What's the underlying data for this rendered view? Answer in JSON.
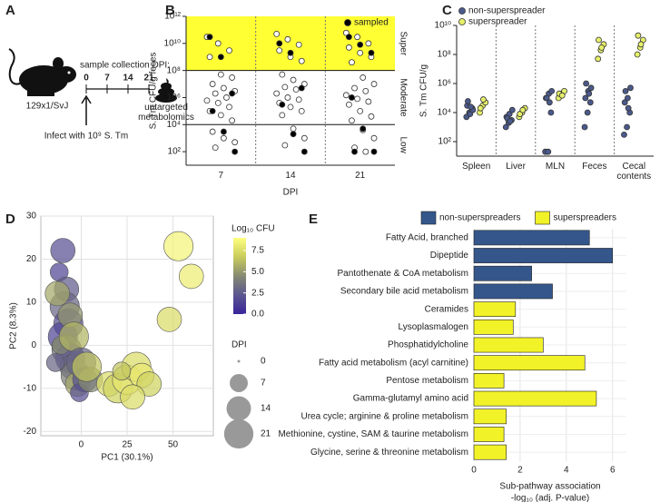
{
  "diagram": {
    "panel_label": "A",
    "strain": "129x1/SvJ",
    "timeline_title": "sample collection DPI:",
    "timepoints": [
      "0",
      "7",
      "14",
      "21"
    ],
    "infection": "Infect with 10⁹ S. Tm",
    "output": "untargeted metabolomics"
  },
  "chart_data": [
    {
      "panel_label": "B",
      "type": "strip",
      "ylabel": "S. Tm CFU/g feces",
      "xlabel": "DPI",
      "categories": [
        "7",
        "14",
        "21"
      ],
      "log_y": true,
      "dodge": false,
      "ylim": [
        10,
        1000000000000
      ],
      "yticks": [
        {
          "value": 100,
          "label": "10²"
        },
        {
          "value": 10000,
          "label": "10⁴"
        },
        {
          "value": 1000000,
          "label": "10⁶"
        },
        {
          "value": 100000000,
          "label": "10⁸"
        },
        {
          "value": 10000000000,
          "label": "10¹⁰"
        },
        {
          "value": 1000000000000,
          "label": "10¹²"
        }
      ],
      "regions": [
        {
          "label": "Super",
          "range": [
            100000000,
            1000000000000
          ],
          "color": "#ffff33"
        },
        {
          "label": "Moderate",
          "range": [
            10000,
            100000000
          ]
        },
        {
          "label": "Low",
          "range": [
            10,
            10000
          ]
        }
      ],
      "legend": "upper right",
      "series": [
        {
          "color": "#ffffff",
          "values": [
            [
              30000000000,
              10000000000,
              3000000000,
              1000000000,
              50000000,
              30000000,
              10000000,
              5000000,
              3000000,
              2000000,
              1000000,
              600000,
              400000,
              200000,
              100000,
              50000,
              20000,
              3000,
              1000,
              500,
              200
            ],
            [
              50000000000,
              20000000000,
              8000000000,
              3000000000,
              1000000000,
              500000000,
              50000000,
              20000000,
              10000000,
              6000000,
              4000000,
              2000000,
              1000000,
              700000,
              400000,
              200000,
              100000,
              50000,
              5000,
              1000,
              300
            ],
            [
              60000000000,
              30000000000,
              10000000000,
              5000000000,
              2000000000,
              1000000000,
              400000000,
              30000000,
              10000000,
              5000000,
              3000000,
              1500000,
              800000,
              500000,
              300000,
              100000,
              40000,
              20000,
              4000,
              1000,
              200,
              100
            ]
          ]
        },
        {
          "name": "sampled",
          "color": "#000000",
          "values": [
            [
              30000000000,
              1000000000,
              2000000,
              100000,
              3000,
              100
            ],
            [
              10000000000,
              2000000000,
              5000000,
              300000,
              2000,
              100
            ],
            [
              30000000000,
              8000000000,
              2000000000,
              1000000,
              5000,
              100,
              100
            ]
          ]
        }
      ]
    },
    {
      "panel_label": "C",
      "type": "strip",
      "ylabel": "S. Tm CFU/g",
      "categories": [
        "Spleen",
        "Liver",
        "MLN",
        "Feces",
        "Cecal contents"
      ],
      "log_y": true,
      "dodge": true,
      "ylim": [
        10,
        10000000000
      ],
      "yticks": [
        {
          "value": 100,
          "label": "10²"
        },
        {
          "value": 10000,
          "label": "10⁴"
        },
        {
          "value": 1000000,
          "label": "10⁶"
        },
        {
          "value": 100000000,
          "label": "10⁸"
        },
        {
          "value": 10000000000,
          "label": "10¹⁰"
        }
      ],
      "legend": "upper left",
      "series": [
        {
          "name": "non-superspreader",
          "color": "#4b5a8c",
          "values": [
            [
              5000,
              10000,
              20000,
              30000,
              8000,
              15000,
              60000,
              25000
            ],
            [
              1000,
              2000,
              3000,
              5000,
              8000,
              15000,
              4000,
              2500
            ],
            [
              20,
              20,
              10000,
              100000,
              200000,
              300000,
              100000,
              50000
            ],
            [
              1000,
              10000,
              50000,
              100000,
              300000,
              500000,
              1000000,
              200000
            ],
            [
              300,
              1000,
              10000,
              50000,
              100000,
              500000,
              300000,
              20000
            ]
          ]
        },
        {
          "name": "superspreader",
          "color": "#e6f06a",
          "values": [
            [
              10000,
              30000,
              50000,
              20000,
              80000
            ],
            [
              5000,
              10000,
              20000,
              8000,
              15000
            ],
            [
              100000,
              200000,
              300000,
              200000,
              150000
            ],
            [
              50000000,
              200000000,
              500000000,
              1000000000,
              300000000
            ],
            [
              100000000,
              300000000,
              1000000000,
              2000000000,
              500000000
            ]
          ]
        }
      ]
    },
    {
      "panel_label": "D",
      "type": "bubble",
      "xlabel": "PC1 (30.1%)",
      "ylabel": "PC2 (8.3%)",
      "grid": true,
      "xlim": [
        -22,
        72
      ],
      "ylim": [
        -21,
        30
      ],
      "xticks": [
        0,
        25,
        50
      ],
      "yticks": [
        -20,
        -10,
        0,
        10,
        20,
        30
      ],
      "x": [
        -10,
        -12,
        -8,
        -9,
        -7,
        -10,
        -8,
        -6,
        -5,
        -3,
        -2,
        -6,
        -11,
        -4,
        0,
        2,
        -13,
        -14,
        -1,
        5,
        3,
        15,
        20,
        25,
        30,
        33,
        37,
        28,
        48,
        53,
        60,
        22
      ],
      "y": [
        22,
        17,
        13,
        9,
        5,
        2,
        -1,
        -3,
        -5,
        -7,
        -9,
        7,
        0,
        2,
        -4,
        -8,
        12,
        -4,
        -11,
        -8,
        -5,
        -9,
        -10,
        -8,
        -5,
        -7,
        -9,
        -12,
        6,
        23,
        16,
        -6
      ],
      "sizes": [
        14,
        7,
        14,
        21,
        21,
        21,
        21,
        21,
        14,
        21,
        14,
        14,
        7,
        21,
        21,
        14,
        14,
        7,
        7,
        14,
        21,
        14,
        21,
        21,
        21,
        14,
        14,
        14,
        14,
        21,
        14,
        7
      ],
      "colors": [
        2,
        1.5,
        2.5,
        3,
        2,
        1.5,
        3.5,
        2,
        3,
        4,
        5.5,
        5,
        4.5,
        6,
        3,
        2,
        5.5,
        3,
        2,
        4.5,
        6.5,
        7.5,
        7,
        8,
        7.5,
        8,
        7,
        7.5,
        7.5,
        8.5,
        8.2,
        6.5
      ],
      "size_legend": {
        "title": "DPI",
        "values": [
          0,
          7,
          14,
          21
        ]
      },
      "colorbar": {
        "title": "Log₁₀ CFU",
        "lim": [
          0,
          9
        ],
        "colormap": [
          "#3a249a",
          "#5b5690",
          "#858a72",
          "#c9cc5c",
          "#ffff80"
        ],
        "ticks": [
          {
            "value": 0,
            "label": "0.0"
          },
          {
            "value": 2.5,
            "label": "2.5"
          },
          {
            "value": 5,
            "label": "5.0"
          },
          {
            "value": 7.5,
            "label": "7.5"
          }
        ]
      }
    },
    {
      "panel_label": "E",
      "type": "bar",
      "orientation": "horizontal",
      "grid": true,
      "legend": "top",
      "xlabel": "Sub-pathway association",
      "xlabel2": "-log₁₀ (adj. P-value)",
      "xlim": [
        0,
        6.6
      ],
      "xticks": [
        0,
        2,
        4,
        6
      ],
      "categories": [
        "Fatty Acid, branched",
        "Dipeptide",
        "Pantothenate & CoA metabolism",
        "Secondary bile acid metabolism",
        "Ceramides",
        "Lysoplasmalogen",
        "Phosphatidylcholine",
        "Fatty acid metabolism (acyl carnitine)",
        "Pentose metabolism",
        "Gamma-glutamyl amino acid",
        "Urea cycle; arginine & proline metabolism",
        "Methionine, cystine, SAM & taurine metabolism",
        "Glycine, serine & threonine metabolism"
      ],
      "series": [
        {
          "name": "non-superspreaders",
          "color": "#34568b",
          "values": [
            5.0,
            6.0,
            2.5,
            3.4,
            null,
            null,
            null,
            null,
            null,
            null,
            null,
            null,
            null
          ]
        },
        {
          "name": "superspreaders",
          "color": "#f2f229",
          "values": [
            null,
            null,
            null,
            null,
            1.8,
            1.7,
            3.0,
            4.8,
            1.3,
            5.3,
            1.4,
            1.3,
            1.4
          ]
        }
      ]
    }
  ]
}
